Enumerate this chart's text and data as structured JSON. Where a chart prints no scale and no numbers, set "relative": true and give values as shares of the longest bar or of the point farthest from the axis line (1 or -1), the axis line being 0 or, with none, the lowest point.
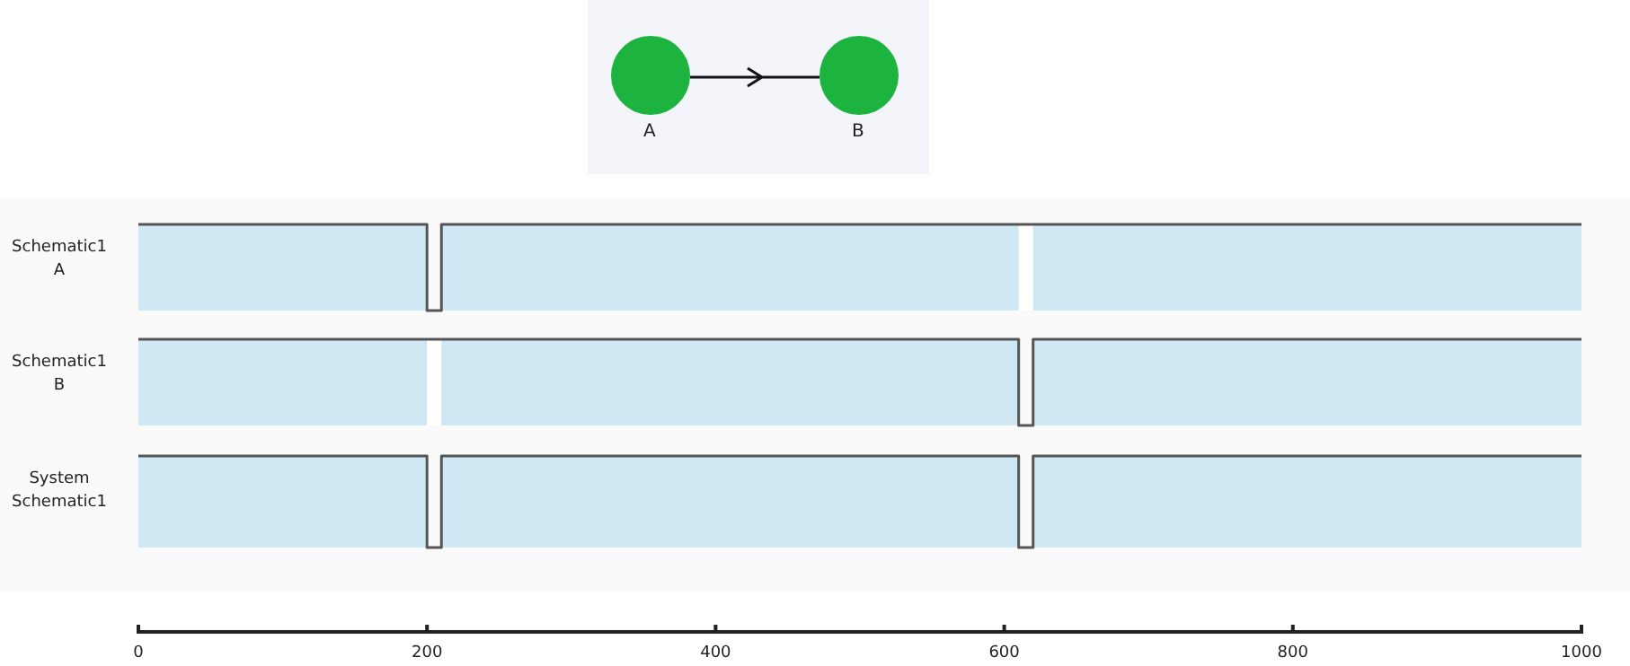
{
  "chart_data": [
    {
      "type": "line",
      "ylabel": "Schematic1\nA",
      "relative": true,
      "xlim": [
        0,
        1000
      ],
      "tick_labels": false,
      "annotations": [
        "A",
        "B"
      ],
      "x": [
        0,
        200,
        200,
        210,
        210,
        1000
      ],
      "values": [
        1,
        1,
        0,
        0,
        1,
        1
      ],
      "color": "#555555",
      "bands": [
        {
          "axis": "x",
          "from": 610,
          "to": 620,
          "color": "#ffffff"
        }
      ]
    },
    {
      "type": "line",
      "ylabel": "Schematic1\nB",
      "relative": true,
      "xlim": [
        0,
        1000
      ],
      "tick_labels": false,
      "x": [
        0,
        610,
        610,
        620,
        620,
        1000
      ],
      "values": [
        1,
        1,
        0,
        0,
        1,
        1
      ],
      "color": "#555555",
      "bands": [
        {
          "axis": "x",
          "from": 200,
          "to": 210,
          "color": "#ffffff"
        }
      ]
    },
    {
      "type": "line",
      "ylabel": "System\nSchematic1",
      "relative": true,
      "xlim": [
        0,
        1000
      ],
      "tick_labels": "x",
      "xticks": [
        0,
        200,
        400,
        600,
        800,
        1000
      ],
      "x": [
        0,
        200,
        200,
        210,
        210,
        610,
        610,
        620,
        620,
        1000
      ],
      "values": [
        1,
        1,
        0,
        0,
        1,
        1,
        0,
        0,
        1,
        1
      ],
      "color": "#555555"
    }
  ]
}
